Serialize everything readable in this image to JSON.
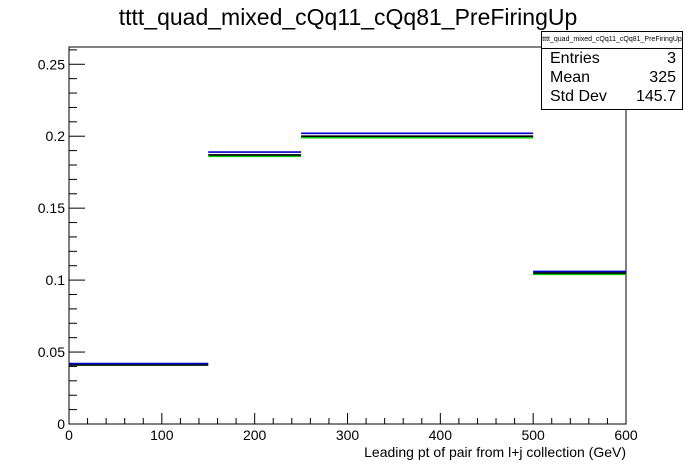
{
  "chart_data": {
    "type": "step",
    "title": "tttt_quad_mixed_cQq11_cQq81_PreFiringUp",
    "xlabel": "Leading pt of pair from l+j collection (GeV)",
    "ylabel": "",
    "xlim": [
      0,
      600
    ],
    "ylim": [
      0,
      0.262
    ],
    "x_ticks": [
      0,
      100,
      200,
      300,
      400,
      500,
      600
    ],
    "y_ticks": [
      0,
      0.05,
      0.1,
      0.15,
      0.2,
      0.25
    ],
    "x_tick_labels": [
      "0",
      "100",
      "200",
      "300",
      "400",
      "500",
      "600"
    ],
    "y_tick_labels": [
      "0",
      "0.05",
      "0.1",
      "0.15",
      "0.2",
      "0.25"
    ],
    "bin_edges": [
      0,
      150,
      250,
      500,
      600
    ],
    "series": [
      {
        "color": "#00cc00",
        "values": [
          0.041,
          0.186,
          0.199,
          0.104
        ]
      },
      {
        "color": "#000000",
        "values": [
          0.041,
          0.187,
          0.2,
          0.105
        ]
      },
      {
        "color": "#0000cc",
        "values": [
          0.042,
          0.189,
          0.202,
          0.106
        ]
      }
    ],
    "legend": "none",
    "grid": false
  },
  "stats_box": {
    "title": "tttt_quad_mixed_cQq11_cQq81_PreFiringUp",
    "rows": [
      {
        "label": "Entries",
        "value": "3"
      },
      {
        "label": "Mean",
        "value": "325"
      },
      {
        "label": "Std Dev",
        "value": "145.7"
      }
    ]
  }
}
